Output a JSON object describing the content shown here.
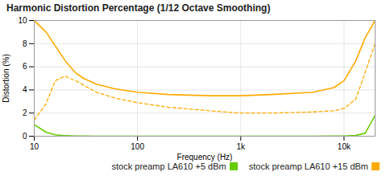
{
  "chart_data": {
    "type": "line",
    "title": "Harmonic Distortion Percentage (1/12 Octave Smoothing)",
    "xlabel": "Frequency (Hz)",
    "ylabel": "Distortion (%)",
    "log": "x",
    "xlim": [
      10,
      20000
    ],
    "ylim": [
      0,
      10
    ],
    "xticks": [
      10,
      100,
      {
        "value": 1000,
        "label": "1k"
      },
      {
        "value": 10000,
        "label": "10k"
      }
    ],
    "yticks": [
      0,
      2,
      4,
      6,
      8,
      10
    ],
    "grid": true,
    "legend": "bottom-right",
    "series": [
      {
        "name": "stock preamp LA610 +15 dBm",
        "color": "#ffaa00",
        "line_style": "solid",
        "x": [
          10,
          13,
          16,
          20,
          25,
          30,
          40,
          60,
          100,
          200,
          500,
          1000,
          2000,
          5000,
          8000,
          10000,
          13000,
          16000,
          20000
        ],
        "values": [
          10.0,
          9.0,
          7.8,
          6.5,
          5.5,
          5.0,
          4.5,
          4.1,
          3.8,
          3.6,
          3.5,
          3.5,
          3.6,
          3.8,
          4.2,
          4.8,
          6.5,
          8.5,
          10.0
        ]
      },
      {
        "color": "#ffaa00",
        "line_style": "dashed",
        "x": [
          10,
          13,
          16,
          20,
          22,
          25,
          28,
          30,
          40,
          60,
          100,
          200,
          500,
          1000,
          2000,
          5000,
          8000,
          10000,
          13000,
          16000,
          20000
        ],
        "values": [
          1.4,
          2.8,
          4.8,
          5.2,
          5.0,
          4.8,
          4.6,
          4.4,
          3.8,
          3.3,
          2.9,
          2.5,
          2.2,
          2.0,
          2.0,
          2.1,
          2.2,
          2.4,
          3.2,
          5.5,
          8.0
        ]
      },
      {
        "name": "stock preamp LA610 +5 dBm",
        "color": "#66cc00",
        "line_style": "solid",
        "x": [
          10,
          13,
          16,
          20,
          25,
          30,
          40,
          60,
          100,
          200,
          500,
          1000,
          2000,
          5000,
          8000,
          10000,
          13000,
          16000,
          20000
        ],
        "values": [
          1.0,
          0.35,
          0.12,
          0.04,
          0.015,
          0.008,
          0.004,
          0.002,
          0.001,
          0.001,
          0.001,
          0.001,
          0.001,
          0.002,
          0.008,
          0.02,
          0.07,
          0.25,
          1.8
        ]
      }
    ]
  }
}
